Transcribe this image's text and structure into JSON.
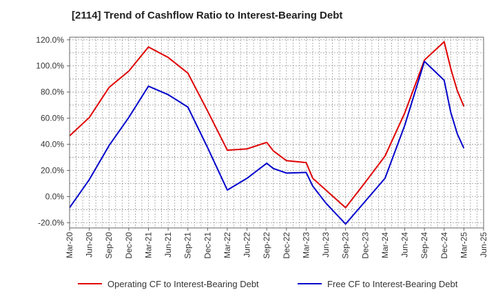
{
  "chart_data": {
    "type": "line",
    "title": "[2114]  Trend of Cashflow Ratio to Interest-Bearing Debt",
    "xlabel": "",
    "ylabel": "",
    "x_ticks": [
      "Mar-20",
      "Jun-20",
      "Sep-20",
      "Dec-20",
      "Mar-21",
      "Jun-21",
      "Sep-21",
      "Dec-21",
      "Mar-22",
      "Jun-22",
      "Sep-22",
      "Dec-22",
      "Mar-23",
      "Jun-23",
      "Sep-23",
      "Dec-23",
      "Mar-24",
      "Jun-24",
      "Sep-24",
      "Dec-24",
      "Mar-25",
      "Jun-25"
    ],
    "y_ticks": [
      "120.0%",
      "100.0%",
      "80.0%",
      "60.0%",
      "40.0%",
      "20.0%",
      "0.0%",
      "-20.0%"
    ],
    "y_tick_values": [
      120,
      100,
      80,
      60,
      40,
      20,
      0,
      -20
    ],
    "ylim": [
      -24,
      122
    ],
    "y_unit": "%",
    "grid": true,
    "legend_position": "bottom",
    "series": [
      {
        "name": "Operating CF to Interest-Bearing Debt",
        "color": "#e00000",
        "points": [
          [
            "Mar-20",
            46.5
          ],
          [
            "Jun-20",
            60.5
          ],
          [
            "Sep-20",
            83.5
          ],
          [
            "Dec-20",
            96.0
          ],
          [
            "Mar-21",
            114.5
          ],
          [
            "Jun-21",
            106.5
          ],
          [
            "Sep-21",
            94.5
          ],
          [
            "Dec-21",
            65.5
          ],
          [
            "Mar-22",
            35.5
          ],
          [
            "Jun-22",
            36.5
          ],
          [
            "Sep-22",
            41.5
          ],
          [
            "Oct-22",
            35.0
          ],
          [
            "Dec-22",
            27.5
          ],
          [
            "Mar-23",
            26.0
          ],
          [
            "Apr-23",
            14.0
          ],
          [
            "Jun-23",
            5.0
          ],
          [
            "Sep-23",
            -8.5
          ],
          [
            "Dec-23",
            11.0
          ],
          [
            "Mar-24",
            31.0
          ],
          [
            "Jun-24",
            64.0
          ],
          [
            "Sep-24",
            104.5
          ],
          [
            "Dec-24",
            118.5
          ],
          [
            "Jan-25",
            98.0
          ],
          [
            "Feb-25",
            81.0
          ],
          [
            "Mar-25",
            69.0
          ]
        ]
      },
      {
        "name": "Free CF to Interest-Bearing Debt",
        "color": "#0000cc",
        "points": [
          [
            "Mar-20",
            -8.5
          ],
          [
            "Jun-20",
            13.0
          ],
          [
            "Sep-20",
            39.0
          ],
          [
            "Dec-20",
            60.5
          ],
          [
            "Mar-21",
            84.5
          ],
          [
            "Jun-21",
            78.0
          ],
          [
            "Sep-21",
            68.5
          ],
          [
            "Dec-21",
            37.5
          ],
          [
            "Mar-22",
            5.0
          ],
          [
            "Jun-22",
            14.0
          ],
          [
            "Sep-22",
            25.5
          ],
          [
            "Oct-22",
            21.5
          ],
          [
            "Dec-22",
            18.0
          ],
          [
            "Mar-23",
            18.5
          ],
          [
            "Apr-23",
            8.0
          ],
          [
            "Jun-23",
            -5.0
          ],
          [
            "Sep-23",
            -21.0
          ],
          [
            "Dec-23",
            -3.5
          ],
          [
            "Mar-24",
            14.0
          ],
          [
            "Jun-24",
            54.5
          ],
          [
            "Sep-24",
            103.5
          ],
          [
            "Dec-24",
            89.0
          ],
          [
            "Jan-25",
            64.5
          ],
          [
            "Feb-25",
            48.0
          ],
          [
            "Mar-25",
            37.0
          ]
        ]
      }
    ]
  }
}
